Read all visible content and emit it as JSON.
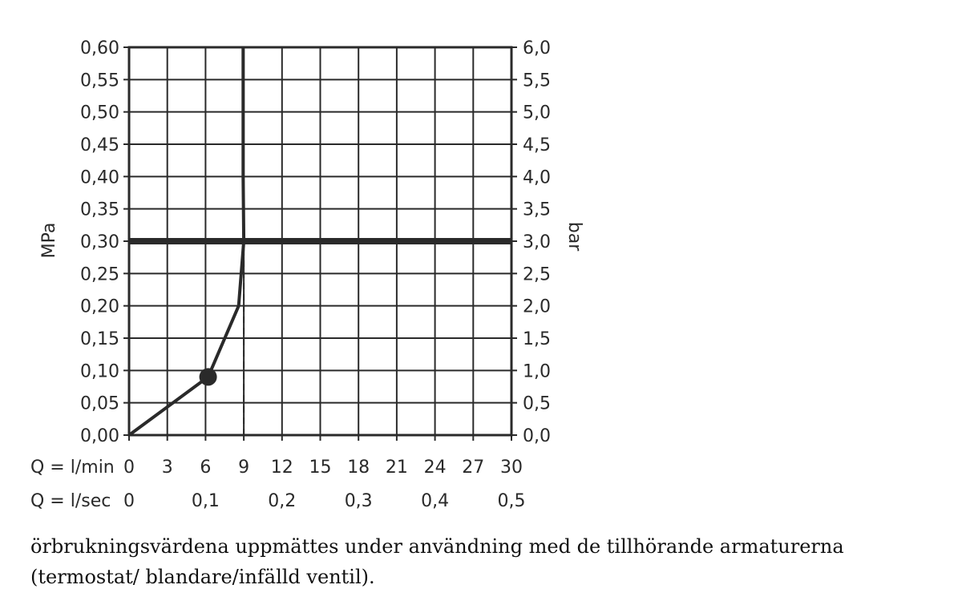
{
  "chart_data": {
    "type": "line",
    "y_left": {
      "label": "MPa",
      "ticks": [
        "0,00",
        "0,05",
        "0,10",
        "0,15",
        "0,20",
        "0,25",
        "0,30",
        "0,35",
        "0,40",
        "0,45",
        "0,50",
        "0,55",
        "0,60"
      ],
      "range": [
        0,
        0.6
      ]
    },
    "y_right": {
      "label": "bar",
      "ticks": [
        "0,0",
        "0,5",
        "1,0",
        "1,5",
        "2,0",
        "2,5",
        "3,0",
        "3,5",
        "4,0",
        "4,5",
        "5,0",
        "5,5",
        "6,0"
      ],
      "range": [
        0,
        6.0
      ]
    },
    "x_rows": [
      {
        "label": "Q = l/min",
        "ticks": [
          {
            "x": 0,
            "text": "0"
          },
          {
            "x": 3,
            "text": "3"
          },
          {
            "x": 6,
            "text": "6"
          },
          {
            "x": 9,
            "text": "9"
          },
          {
            "x": 12,
            "text": "12"
          },
          {
            "x": 15,
            "text": "15"
          },
          {
            "x": 18,
            "text": "18"
          },
          {
            "x": 21,
            "text": "21"
          },
          {
            "x": 24,
            "text": "24"
          },
          {
            "x": 27,
            "text": "27"
          },
          {
            "x": 30,
            "text": "30"
          }
        ]
      },
      {
        "label": "Q = l/sec",
        "ticks": [
          {
            "x": 0,
            "text": "0"
          },
          {
            "x": 6,
            "text": "0,1"
          },
          {
            "x": 12,
            "text": "0,2"
          },
          {
            "x": 18,
            "text": "0,3"
          },
          {
            "x": 24,
            "text": "0,4"
          },
          {
            "x": 30,
            "text": "0,5"
          }
        ]
      }
    ],
    "x_range": [
      0,
      30
    ],
    "series": [
      {
        "style": "solid",
        "points": [
          [
            0,
            0
          ],
          [
            6.2,
            0.09
          ],
          [
            8.6,
            0.2
          ],
          [
            9.0,
            0.3
          ],
          [
            8.95,
            0.4
          ],
          [
            8.95,
            0.6
          ]
        ]
      }
    ],
    "marker": {
      "x": 6.2,
      "y": 0.09
    },
    "reference_line_y": 0.3,
    "dashed_line": {
      "x": 9.0,
      "y_from": 0,
      "y_to": 0.3
    },
    "grid": true
  },
  "caption": "örbrukningsvärdena uppmättes under användning med de tillhörande armaturerna (termostat/ blandare/infälld ventil)."
}
